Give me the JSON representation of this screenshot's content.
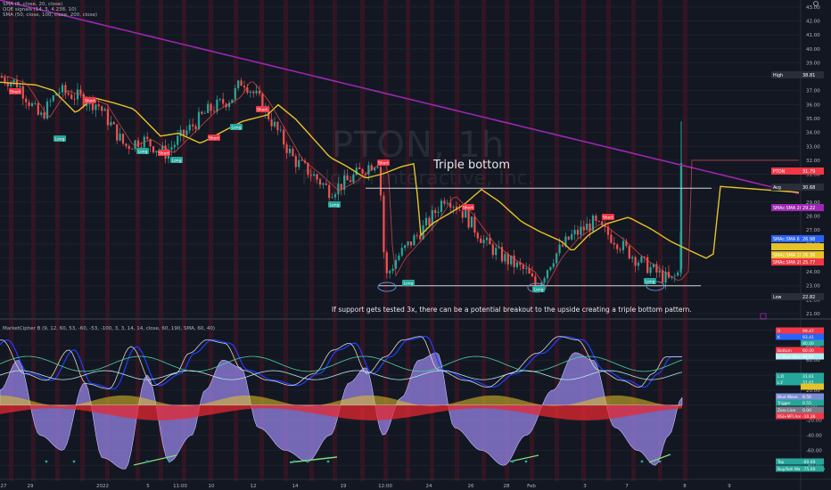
{
  "chart_data": [
    {
      "type": "candlestick",
      "symbol": "PTON",
      "timeframe": "1h",
      "company": "Peloton Interactive, Inc.",
      "indicator_lines": [
        "SMA (6, close, 20, close)",
        "QQE signals (14, 5, 4.238, 10)",
        "SMA (50, close, 100, close, 200, close)"
      ],
      "y_ticks": [
        "43.00",
        "42.00",
        "41.00",
        "40.00",
        "39.00",
        "38.00",
        "37.00",
        "36.00",
        "35.00",
        "34.00",
        "33.00",
        "32.00",
        "31.00",
        "30.00",
        "29.00",
        "28.00",
        "27.00",
        "26.00",
        "25.00",
        "24.00",
        "23.00",
        "22.00",
        "21.00"
      ],
      "ylim": [
        21,
        43.5
      ],
      "x_ticks": [
        "27",
        "29",
        "2022",
        "5",
        "11:00",
        "10",
        "12",
        "14",
        "19",
        "12:00",
        "24",
        "26",
        "28",
        "Feb",
        "3",
        "7",
        "8",
        "9"
      ],
      "annotations": {
        "title": "Triple bottom",
        "note": "If support gets tested 3x, there can be a potential breakout to the upside creating a triple bottom pattern.",
        "resistance_level": 30.0,
        "support_level": 23.0
      },
      "price_labels": [
        {
          "label": "High",
          "value": "38.81",
          "color": "#2a2e39"
        },
        {
          "label": "PTON",
          "value": "31.79",
          "color": "#f23645"
        },
        {
          "label": "Avg",
          "value": "30.68",
          "color": "#2a2e39"
        },
        {
          "label": "SMAc:SMA 200",
          "value": "29.22",
          "color": "#9c27b0"
        },
        {
          "label": "SMAc:SMA 6",
          "value": "26.98",
          "color": "#2962ff"
        },
        {
          "label": "",
          "value": "",
          "color": "#e6c229"
        },
        {
          "label": "SMAc:SMA 100",
          "value": "26.36",
          "color": "#e6c229"
        },
        {
          "label": "SMAc:SMA 20",
          "value": "25.77",
          "color": "#f23645"
        },
        {
          "label": "Low",
          "value": "22.82",
          "color": "#2a2e39"
        }
      ],
      "signals": [
        {
          "text": "Short",
          "type": "short"
        },
        {
          "text": "Long",
          "type": "long"
        },
        {
          "text": "Short",
          "type": "short"
        },
        {
          "text": "Long",
          "type": "long"
        },
        {
          "text": "Short",
          "type": "short"
        },
        {
          "text": "Long",
          "type": "long"
        },
        {
          "text": "Short",
          "type": "short"
        },
        {
          "text": "Long",
          "type": "long"
        },
        {
          "text": "Short",
          "type": "short"
        },
        {
          "text": "Long",
          "type": "long"
        },
        {
          "text": "Short",
          "type": "short"
        },
        {
          "text": "Long",
          "type": "long"
        },
        {
          "text": "Short",
          "type": "short"
        },
        {
          "text": "Long",
          "type": "long"
        },
        {
          "text": "Short",
          "type": "short"
        },
        {
          "text": "Long",
          "type": "long"
        }
      ]
    },
    {
      "type": "area",
      "title": "MarketCipher B (9, 12, 60, 53, -60, -53, -100, 3, 3, 14, 14, close, 60, 190, SMA, 60, 40)",
      "y_ticks": [
        "100.00",
        "80.00",
        "60.00",
        "40.00",
        "20.00",
        "0.00",
        "-20.00",
        "-40.00",
        "-60.00",
        "-80.00"
      ],
      "ylim": [
        -95,
        110
      ],
      "labels": [
        {
          "label": "D",
          "value": "99.47",
          "color": "#f23645"
        },
        {
          "label": "K",
          "value": "93.41",
          "color": "#2962ff"
        },
        {
          "label": "",
          "value": "80.00",
          "color": "#26a69a"
        },
        {
          "label": "Bottom",
          "value": "60.00",
          "color": "#f23645"
        },
        {
          "label": "Lt Blue Wave",
          "value": "44.95",
          "color": "#b2ebf2"
        },
        {
          "label": "L:D",
          "value": "31.61",
          "color": "#26a69a"
        },
        {
          "label": "L:F",
          "value": "31.61",
          "color": "#26a69a"
        },
        {
          "label": "",
          "value": "",
          "color": "#e6c229"
        },
        {
          "label": "Blue Wave",
          "value": "8.56",
          "color": "#7e8cd6"
        },
        {
          "label": "Trigger",
          "value": "0.55",
          "color": "#26a69a"
        },
        {
          "label": "Zero Line",
          "value": "0.00",
          "color": "#787b86"
        },
        {
          "label": "RSI+MFI Area",
          "value": "-10.36",
          "color": "#f23645"
        },
        {
          "label": "Top",
          "value": "-60.00",
          "color": "#26a69a"
        },
        {
          "label": "Buy/Sell Wave Crossover",
          "value": "-75.00",
          "color": "#26a69a"
        }
      ]
    }
  ]
}
